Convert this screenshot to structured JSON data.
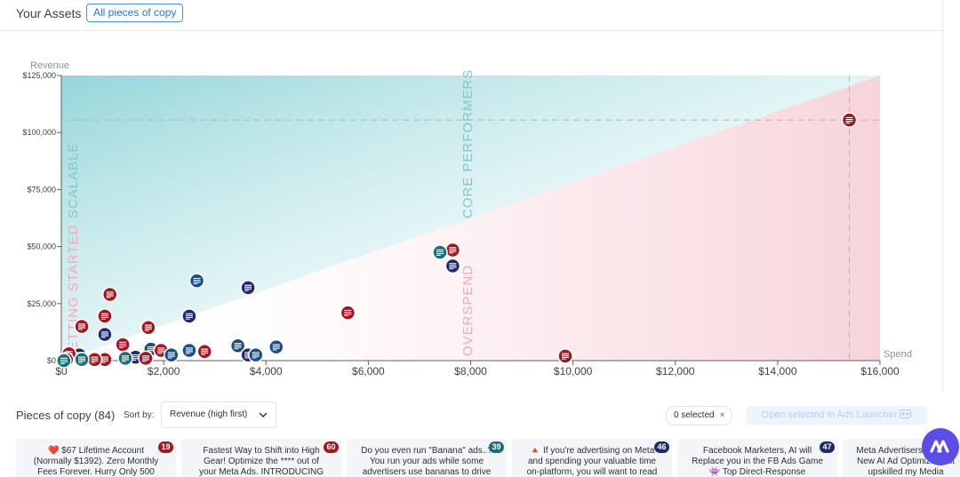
{
  "header": {
    "title": "Your Assets",
    "filter_pill": "All pieces of copy"
  },
  "chart_data": {
    "type": "scatter",
    "xlabel": "Spend",
    "ylabel": "Revenue",
    "xlim": [
      0,
      16000
    ],
    "ylim": [
      0,
      125000
    ],
    "x_ticks": [
      "$0",
      "$2,000",
      "$4,000",
      "$6,000",
      "$8,000",
      "$10,000",
      "$12,000",
      "$14,000",
      "$16,000"
    ],
    "y_ticks": [
      "$0",
      "$25,000",
      "$50,000",
      "$75,000",
      "$100,000",
      "$125,000"
    ],
    "x_tick_values": [
      0,
      2000,
      4000,
      6000,
      8000,
      10000,
      12000,
      14000,
      16000
    ],
    "y_tick_values": [
      0,
      25000,
      50000,
      75000,
      100000,
      125000
    ],
    "reference_lines": {
      "x": 15400,
      "y": 105500
    },
    "zones": [
      "SCALABLE",
      "CORE PERFORMERS",
      "GETTING STARTED",
      "OVERSPEND"
    ],
    "colors": {
      "red": "#a3151f",
      "navy": "#1f2a6e",
      "teal": "#1c6f78",
      "blue": "#1a4f86"
    },
    "points": [
      {
        "x": 15400,
        "y": 105500,
        "color": "red"
      },
      {
        "x": 7650,
        "y": 48500,
        "color": "red"
      },
      {
        "x": 7400,
        "y": 47500,
        "color": "teal"
      },
      {
        "x": 7650,
        "y": 41500,
        "color": "navy"
      },
      {
        "x": 5600,
        "y": 21000,
        "color": "red"
      },
      {
        "x": 9850,
        "y": 2000,
        "color": "red"
      },
      {
        "x": 2650,
        "y": 35000,
        "color": "blue"
      },
      {
        "x": 3650,
        "y": 32000,
        "color": "navy"
      },
      {
        "x": 2500,
        "y": 19500,
        "color": "navy"
      },
      {
        "x": 950,
        "y": 29000,
        "color": "red"
      },
      {
        "x": 850,
        "y": 19500,
        "color": "red"
      },
      {
        "x": 400,
        "y": 15000,
        "color": "red"
      },
      {
        "x": 1700,
        "y": 14500,
        "color": "red"
      },
      {
        "x": 850,
        "y": 11500,
        "color": "navy"
      },
      {
        "x": 1200,
        "y": 7000,
        "color": "red"
      },
      {
        "x": 1750,
        "y": 5000,
        "color": "blue"
      },
      {
        "x": 1950,
        "y": 4500,
        "color": "red"
      },
      {
        "x": 2500,
        "y": 4500,
        "color": "blue"
      },
      {
        "x": 2800,
        "y": 4000,
        "color": "red"
      },
      {
        "x": 3450,
        "y": 6500,
        "color": "blue"
      },
      {
        "x": 4200,
        "y": 6000,
        "color": "blue"
      },
      {
        "x": 3650,
        "y": 2500,
        "color": "navy"
      },
      {
        "x": 3800,
        "y": 2500,
        "color": "blue"
      },
      {
        "x": 2150,
        "y": 2500,
        "color": "blue"
      },
      {
        "x": 1450,
        "y": 1500,
        "color": "navy"
      },
      {
        "x": 1650,
        "y": 1000,
        "color": "red"
      },
      {
        "x": 1250,
        "y": 1000,
        "color": "teal"
      },
      {
        "x": 850,
        "y": 500,
        "color": "red"
      },
      {
        "x": 650,
        "y": 500,
        "color": "red"
      },
      {
        "x": 350,
        "y": 2500,
        "color": "navy"
      },
      {
        "x": 150,
        "y": 3000,
        "color": "red"
      },
      {
        "x": 400,
        "y": 500,
        "color": "teal"
      },
      {
        "x": 100,
        "y": 500,
        "color": "red"
      },
      {
        "x": 50,
        "y": 0,
        "color": "teal"
      }
    ]
  },
  "pieces": {
    "title": "Pieces of copy (84)",
    "sort_label": "Sort by:",
    "sort_value": "Revenue (high first)",
    "selected_count": "0 selected",
    "selected_close": "×",
    "launch_button": "Open selected in Ads Launcher"
  },
  "cards": [
    {
      "text": "❤️ $67 Lifetime Account (Normally $1392). Zero Monthly Fees Forever. Hurry Only 500 Spots available.",
      "badge": "19",
      "badge_color": "#a3151f"
    },
    {
      "text": "Fastest Way to Shift into High Gear! Optimize the **** out of your Meta Ads. INTRODUCING the AI-Marketer.v4, The",
      "badge": "60",
      "badge_color": "#a3151f"
    },
    {
      "text": "Do you even run \"Banana\" ads..? You run your ads while some advertisers use bananas to drive more sales. We",
      "badge": "39",
      "badge_color": "#1c6f78"
    },
    {
      "text": "🔺 If you're advertising on Meta and spending your valuable time on-platform, you will want to read this.",
      "badge": "46",
      "badge_color": "#1f2a6e"
    },
    {
      "text": "Facebook Marketers, AI will Replace you in the FB Ads Game 👾 Top Direct-Response advertisers won't",
      "badge": "47",
      "badge_color": "#1f2a6e"
    },
    {
      "text": "Meta Advertisers 👀 This New AI Ad Optimizer just upskilled my Media",
      "badge": "",
      "badge_color": ""
    }
  ]
}
